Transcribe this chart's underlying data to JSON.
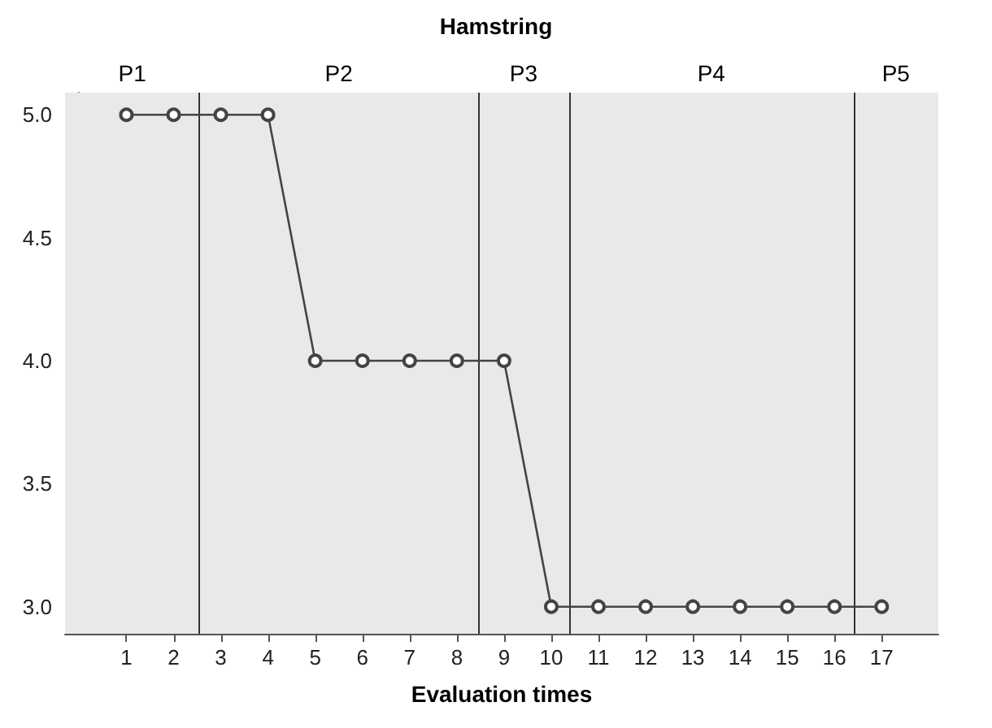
{
  "chart_data": {
    "type": "line",
    "title": "Hamstring",
    "xlabel": "Evaluation times",
    "x": [
      1,
      2,
      3,
      4,
      5,
      6,
      7,
      8,
      9,
      10,
      11,
      12,
      13,
      14,
      15,
      16,
      17
    ],
    "series": [
      {
        "color": "#444444",
        "values": [
          5,
          5,
          5,
          5,
          4,
          4,
          4,
          4,
          4,
          3,
          3,
          3,
          3,
          3,
          3,
          3,
          3
        ]
      }
    ],
    "xlim": [
      -0.3,
      18.2
    ],
    "xticks": [
      1,
      2,
      3,
      4,
      5,
      6,
      7,
      8,
      9,
      10,
      11,
      12,
      13,
      14,
      15,
      16,
      17
    ],
    "ylim": [
      2.89,
      5.09
    ],
    "yticks": [
      {
        "value": 3,
        "label": "3.0"
      },
      {
        "value": 3.5,
        "label": "3.5"
      },
      {
        "value": 4,
        "label": "4.0"
      },
      {
        "value": 4.5,
        "label": "4.5"
      },
      {
        "value": 5,
        "label": "5.0"
      }
    ],
    "bands": [
      {
        "axis": "x",
        "from": -0.3,
        "to": 2.55,
        "label": "P1",
        "color": "#e9e9e9"
      },
      {
        "axis": "x",
        "from": 2.55,
        "to": 8.45,
        "label": "P2",
        "color": "#e9e9e9"
      },
      {
        "axis": "x",
        "from": 8.45,
        "to": 10.38,
        "label": "P3",
        "color": "#e9e9e9"
      },
      {
        "axis": "x",
        "from": 10.38,
        "to": 16.4,
        "label": "P4",
        "color": "#e9e9e9"
      },
      {
        "axis": "x",
        "from": 16.4,
        "to": 18.2,
        "label": "P5",
        "color": "#e9e9e9"
      }
    ],
    "ref_lines": [
      {
        "axis": "x",
        "value": 2.55,
        "color": "#333333"
      },
      {
        "axis": "x",
        "value": 8.45,
        "color": "#333333"
      },
      {
        "axis": "x",
        "value": 10.38,
        "color": "#333333"
      },
      {
        "axis": "x",
        "value": 16.4,
        "color": "#333333"
      }
    ],
    "marker": "circle",
    "line_style": "solid"
  }
}
